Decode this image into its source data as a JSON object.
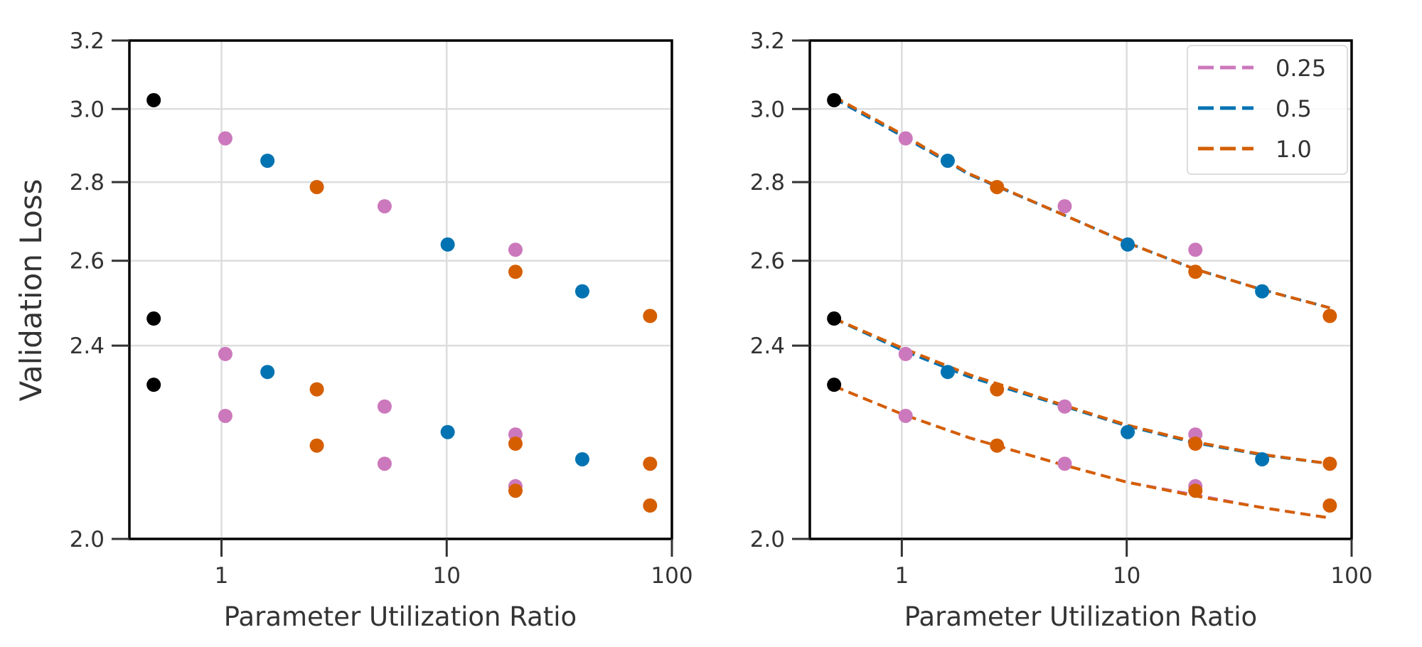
{
  "chart_data": [
    {
      "type": "scatter",
      "xlabel": "Parameter Utilization Ratio",
      "ylabel": "Validation Loss",
      "x_scale": "log",
      "y_scale": "log",
      "xlim": [
        0.39,
        100
      ],
      "ylim": [
        2.0,
        3.2
      ],
      "x_ticks": [
        1,
        10,
        100
      ],
      "x_tick_labels": [
        "1",
        "10",
        "100"
      ],
      "y_ticks": [
        2.0,
        2.4,
        2.6,
        2.8,
        3.0,
        3.2
      ],
      "y_tick_labels": [
        "2.0",
        "2.4",
        "2.6",
        "2.8",
        "3.0",
        "3.2"
      ],
      "grid": true,
      "series": [
        {
          "color": "#000000",
          "points": [
            [
              0.5,
              3.025
            ],
            [
              0.5,
              2.462
            ],
            [
              0.5,
              2.313
            ]
          ]
        },
        {
          "color": "#CC78BC",
          "points": [
            [
              1.04,
              2.918
            ],
            [
              5.3,
              2.737
            ],
            [
              20.2,
              2.627
            ],
            [
              1.04,
              2.381
            ],
            [
              5.3,
              2.266
            ],
            [
              20.2,
              2.207
            ],
            [
              1.04,
              2.246
            ],
            [
              5.3,
              2.147
            ],
            [
              20.2,
              2.102
            ]
          ]
        },
        {
          "color": "#0173B2",
          "points": [
            [
              1.6,
              2.857
            ],
            [
              10.1,
              2.64
            ],
            [
              40,
              2.526
            ],
            [
              1.6,
              2.341
            ],
            [
              10.1,
              2.212
            ],
            [
              40,
              2.156
            ]
          ]
        },
        {
          "color": "#D55E00",
          "points": [
            [
              2.65,
              2.787
            ],
            [
              20.2,
              2.573
            ],
            [
              80,
              2.468
            ],
            [
              2.65,
              2.303
            ],
            [
              20.2,
              2.188
            ],
            [
              80,
              2.147
            ],
            [
              2.65,
              2.184
            ],
            [
              20.2,
              2.093
            ],
            [
              80,
              2.064
            ]
          ]
        }
      ]
    },
    {
      "type": "scatter",
      "xlabel": "Parameter Utilization Ratio",
      "x_scale": "log",
      "y_scale": "log",
      "xlim": [
        0.39,
        100
      ],
      "ylim": [
        2.0,
        3.2
      ],
      "x_ticks": [
        1,
        10,
        100
      ],
      "x_tick_labels": [
        "1",
        "10",
        "100"
      ],
      "y_ticks": [
        2.0,
        2.4,
        2.6,
        2.8,
        3.0,
        3.2
      ],
      "y_tick_labels": [
        "2.0",
        "2.4",
        "2.6",
        "2.8",
        "3.0",
        "3.2"
      ],
      "grid": true,
      "legend_position": "top-right",
      "series": [
        {
          "color": "#000000",
          "points": [
            [
              0.5,
              3.025
            ],
            [
              0.5,
              2.462
            ],
            [
              0.5,
              2.313
            ]
          ]
        },
        {
          "color": "#CC78BC",
          "points": [
            [
              1.04,
              2.918
            ],
            [
              5.3,
              2.737
            ],
            [
              20.2,
              2.627
            ],
            [
              1.04,
              2.381
            ],
            [
              5.3,
              2.266
            ],
            [
              20.2,
              2.207
            ],
            [
              1.04,
              2.246
            ],
            [
              5.3,
              2.147
            ],
            [
              20.2,
              2.102
            ]
          ]
        },
        {
          "color": "#0173B2",
          "points": [
            [
              1.6,
              2.857
            ],
            [
              10.1,
              2.64
            ],
            [
              40,
              2.526
            ],
            [
              1.6,
              2.341
            ],
            [
              10.1,
              2.212
            ],
            [
              40,
              2.156
            ]
          ]
        },
        {
          "color": "#D55E00",
          "points": [
            [
              2.65,
              2.787
            ],
            [
              20.2,
              2.573
            ],
            [
              80,
              2.468
            ],
            [
              2.65,
              2.303
            ],
            [
              20.2,
              2.188
            ],
            [
              80,
              2.147
            ],
            [
              2.65,
              2.184
            ],
            [
              20.2,
              2.093
            ],
            [
              80,
              2.064
            ]
          ]
        }
      ],
      "fits": [
        {
          "name": "0.25",
          "color": "#CC78BC",
          "curves": [
            [
              [
                0.5,
                3.03
              ],
              [
                1,
                2.925
              ],
              [
                2,
                2.82
              ],
              [
                5,
                2.72
              ],
              [
                10,
                2.645
              ],
              [
                20,
                2.58
              ],
              [
                40,
                2.53
              ],
              [
                80,
                2.487
              ]
            ],
            [
              [
                0.5,
                2.31
              ],
              [
                1,
                2.25
              ],
              [
                2,
                2.2
              ],
              [
                5,
                2.147
              ],
              [
                10,
                2.11
              ],
              [
                20,
                2.085
              ],
              [
                40,
                2.06
              ],
              [
                80,
                2.04
              ]
            ]
          ]
        },
        {
          "name": "0.5",
          "color": "#0173B2",
          "curves": [
            [
              [
                0.5,
                3.03
              ],
              [
                1,
                2.925
              ],
              [
                2,
                2.82
              ],
              [
                5,
                2.72
              ],
              [
                10,
                2.645
              ],
              [
                20,
                2.58
              ],
              [
                40,
                2.53
              ],
              [
                80,
                2.487
              ]
            ],
            [
              [
                0.5,
                2.462
              ],
              [
                1,
                2.39
              ],
              [
                2,
                2.33
              ],
              [
                5,
                2.27
              ],
              [
                10,
                2.225
              ],
              [
                20,
                2.19
              ],
              [
                40,
                2.165
              ],
              [
                80,
                2.147
              ]
            ]
          ]
        },
        {
          "name": "1.0",
          "color": "#D55E00",
          "curves": [
            [
              [
                0.5,
                3.035
              ],
              [
                1,
                2.93
              ],
              [
                2,
                2.822
              ],
              [
                5,
                2.72
              ],
              [
                10,
                2.645
              ],
              [
                20,
                2.58
              ],
              [
                40,
                2.53
              ],
              [
                80,
                2.487
              ]
            ],
            [
              [
                0.5,
                2.462
              ],
              [
                1,
                2.395
              ],
              [
                2,
                2.335
              ],
              [
                5,
                2.272
              ],
              [
                10,
                2.227
              ],
              [
                20,
                2.192
              ],
              [
                40,
                2.166
              ],
              [
                80,
                2.147
              ]
            ],
            [
              [
                0.5,
                2.31
              ],
              [
                1,
                2.25
              ],
              [
                2,
                2.2
              ],
              [
                5,
                2.147
              ],
              [
                10,
                2.11
              ],
              [
                20,
                2.083
              ],
              [
                40,
                2.06
              ],
              [
                80,
                2.04
              ]
            ]
          ]
        }
      ]
    }
  ]
}
